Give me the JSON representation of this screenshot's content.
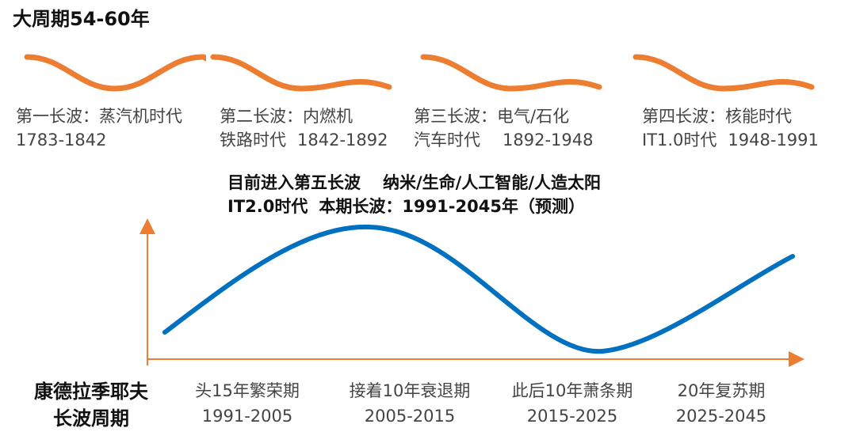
{
  "title": "大周期54-60年",
  "waves": [
    {
      "line1": "第一长波：蒸汽机时代",
      "line2": "1783-1842"
    },
    {
      "line1": "第二长波：内燃机",
      "line2a": "铁路时代",
      "line2b": "1842-1892"
    },
    {
      "line1": "第三长波：电气/石化",
      "line2a": "汽车时代",
      "line2b": "1892-1948"
    },
    {
      "line1": "第四长波：核能时代",
      "line2a": "IT1.0时代",
      "line2b": "1948-1991"
    }
  ],
  "current": {
    "line1a": "目前进入第五长波",
    "line1b": "纳米/生命/人工智能/人造太阳",
    "line2a": "IT2.0时代",
    "line2b": "本期长波：1991-2045年（预测）"
  },
  "kondratiev": {
    "line1": "康德拉季耶夫",
    "line2": "长波周期"
  },
  "phases": [
    {
      "name": "头15年繁荣期",
      "years": "1991-2005"
    },
    {
      "name": "接着10年衰退期",
      "years": "2005-2015"
    },
    {
      "name": "此后10年萧条期",
      "years": "2015-2025"
    },
    {
      "name": "20年复苏期",
      "years": "2025-2045"
    }
  ],
  "colors": {
    "wave": "#ED7D31",
    "curve": "#0070C0",
    "axis": "#ED7D31"
  }
}
